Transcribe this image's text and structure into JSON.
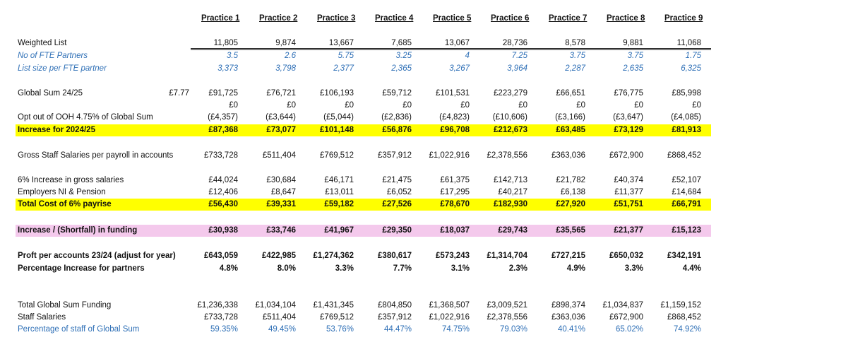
{
  "practices": [
    "Practice 1",
    "Practice 2",
    "Practice 3",
    "Practice 4",
    "Practice 5",
    "Practice 6",
    "Practice 7",
    "Practice 8",
    "Practice 9"
  ],
  "rows": [
    {
      "label": "Weighted List",
      "values": [
        "11,805",
        "9,874",
        "13,667",
        "7,685",
        "13,067",
        "28,736",
        "8,578",
        "9,881",
        "11,068"
      ]
    },
    {
      "label": "No of FTE Partners",
      "values": [
        "3.5",
        "2.6",
        "5.75",
        "3.25",
        "4",
        "7.25",
        "3.75",
        "3.75",
        "1.75"
      ]
    },
    {
      "label": "List size per FTE partner",
      "values": [
        "3,373",
        "3,798",
        "2,377",
        "2,365",
        "3,267",
        "3,964",
        "2,287",
        "2,635",
        "6,325"
      ]
    },
    {
      "label": "Global Sum 24/25",
      "rate": "£7.77",
      "values": [
        "£91,725",
        "£76,721",
        "£106,193",
        "£59,712",
        "£101,531",
        "£223,279",
        "£66,651",
        "£76,775",
        "£85,998"
      ]
    },
    {
      "label": "",
      "values": [
        "£0",
        "£0",
        "£0",
        "£0",
        "£0",
        "£0",
        "£0",
        "£0",
        "£0"
      ]
    },
    {
      "label": "Opt out of OOH 4.75% of Global Sum",
      "values": [
        "(£4,357)",
        "(£3,644)",
        "(£5,044)",
        "(£2,836)",
        "(£4,823)",
        "(£10,606)",
        "(£3,166)",
        "(£3,647)",
        "(£4,085)"
      ]
    },
    {
      "label": "Increase for 2024/25",
      "values": [
        "£87,368",
        "£73,077",
        "£101,148",
        "£56,876",
        "£96,708",
        "£212,673",
        "£63,485",
        "£73,129",
        "£81,913"
      ]
    },
    {
      "label": "Gross Staff Salaries per payroll in accounts",
      "values": [
        "£733,728",
        "£511,404",
        "£769,512",
        "£357,912",
        "£1,022,916",
        "£2,378,556",
        "£363,036",
        "£672,900",
        "£868,452"
      ]
    },
    {
      "label": "6% Increase in gross salaries",
      "values": [
        "£44,024",
        "£30,684",
        "£46,171",
        "£21,475",
        "£61,375",
        "£142,713",
        "£21,782",
        "£40,374",
        "£52,107"
      ]
    },
    {
      "label": "Employers NI & Pension",
      "values": [
        "£12,406",
        "£8,647",
        "£13,011",
        "£6,052",
        "£17,295",
        "£40,217",
        "£6,138",
        "£11,377",
        "£14,684"
      ]
    },
    {
      "label": "Total Cost of 6% payrise",
      "values": [
        "£56,430",
        "£39,331",
        "£59,182",
        "£27,526",
        "£78,670",
        "£182,930",
        "£27,920",
        "£51,751",
        "£66,791"
      ]
    },
    {
      "label": "Increase / (Shortfall) in funding",
      "values": [
        "£30,938",
        "£33,746",
        "£41,967",
        "£29,350",
        "£18,037",
        "£29,743",
        "£35,565",
        "£21,377",
        "£15,123"
      ]
    },
    {
      "label": "Proft per accounts 23/24 (adjust for year)",
      "values": [
        "£643,059",
        "£422,985",
        "£1,274,362",
        "£380,617",
        "£573,243",
        "£1,314,704",
        "£727,215",
        "£650,032",
        "£342,191"
      ]
    },
    {
      "label": "Percentage Increase for partners",
      "values": [
        "4.8%",
        "8.0%",
        "3.3%",
        "7.7%",
        "3.1%",
        "2.3%",
        "4.9%",
        "3.3%",
        "4.4%"
      ]
    },
    {
      "label": "Total Global Sum Funding",
      "values": [
        "£1,236,338",
        "£1,034,104",
        "£1,431,345",
        "£804,850",
        "£1,368,507",
        "£3,009,521",
        "£898,374",
        "£1,034,837",
        "£1,159,152"
      ]
    },
    {
      "label": "Staff Salaries",
      "values": [
        "£733,728",
        "£511,404",
        "£769,512",
        "£357,912",
        "£1,022,916",
        "£2,378,556",
        "£363,036",
        "£672,900",
        "£868,452"
      ]
    },
    {
      "label": "Percentage of staff of Global Sum",
      "values": [
        "59.35%",
        "49.45%",
        "53.76%",
        "44.47%",
        "74.75%",
        "79.03%",
        "40.41%",
        "65.02%",
        "74.92%"
      ]
    }
  ],
  "colors": {
    "highlight_yellow": "#ffff00",
    "highlight_pink": "#f4c9ec",
    "blue_text": "#2e6fb6"
  }
}
